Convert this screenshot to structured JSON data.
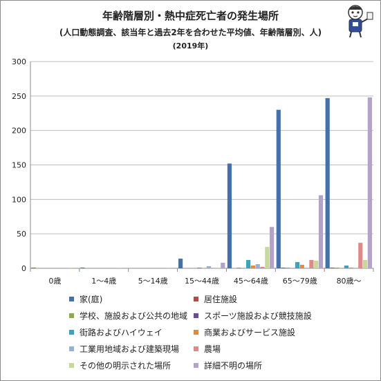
{
  "chart_data": {
    "type": "bar",
    "title": "年齢階層別・熱中症死亡者の発生場所",
    "subtitle": "(人口動態調査、該当年と過去2年を合わせた平均値、年齢階層別、人)",
    "subtitle2": "(2019年)",
    "categories": [
      "0歳",
      "1〜4歳",
      "5〜14歳",
      "15〜44歳",
      "45〜64歳",
      "65〜79歳",
      "80歳〜"
    ],
    "ylim": [
      0,
      300
    ],
    "yticks": [
      0,
      50,
      100,
      150,
      200,
      250,
      300
    ],
    "grid": true,
    "legend_position": "bottom",
    "series": [
      {
        "name": "家(庭)",
        "color": "#4472a8",
        "values": [
          1,
          1,
          0,
          14,
          152,
          230,
          247
        ]
      },
      {
        "name": "居住施設",
        "color": "#b84845",
        "values": [
          0,
          0,
          0,
          0,
          0,
          1,
          1
        ]
      },
      {
        "name": "学校、施設および公共の地域",
        "color": "#8daa4f",
        "values": [
          0,
          0,
          0,
          0,
          1,
          1,
          1
        ]
      },
      {
        "name": "スポーツ施設および競技施設",
        "color": "#6b4d8e",
        "values": [
          0,
          0,
          0,
          0,
          0,
          0,
          0
        ]
      },
      {
        "name": "街路およびハイウェイ",
        "color": "#3aa3bd",
        "values": [
          0,
          0,
          0,
          1,
          12,
          9,
          4
        ]
      },
      {
        "name": "商業およびサービス施設",
        "color": "#e38a38",
        "values": [
          0,
          0,
          0,
          0,
          4,
          5,
          1
        ]
      },
      {
        "name": "工業用地域および建築現場",
        "color": "#96aed8",
        "values": [
          0,
          0,
          0,
          3,
          6,
          0,
          0
        ]
      },
      {
        "name": "農場",
        "color": "#de8a87",
        "values": [
          0,
          0,
          0,
          0,
          2,
          12,
          37
        ]
      },
      {
        "name": "その他の明示された場所",
        "color": "#c6d99a",
        "values": [
          1,
          1,
          1,
          1,
          31,
          11,
          12
        ]
      },
      {
        "name": "詳細不明の場所",
        "color": "#b4a2c8",
        "values": [
          0,
          0,
          0,
          8,
          60,
          106,
          248
        ]
      }
    ]
  }
}
